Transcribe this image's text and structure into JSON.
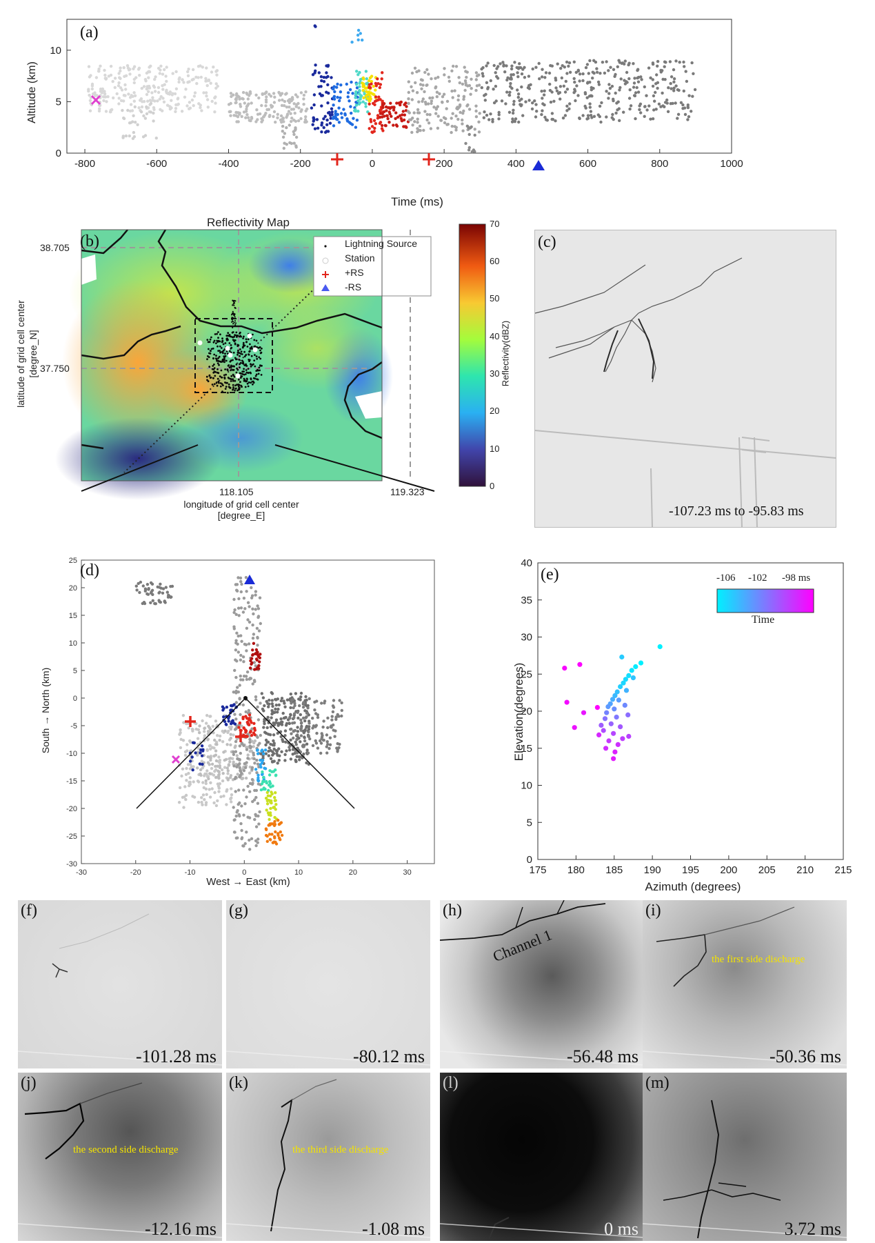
{
  "panel_a": {
    "label": "(a)",
    "ylabel": "Altitude (km)",
    "xlabel": "Time (ms)",
    "xticks": [
      "-800",
      "-600",
      "-400",
      "-200",
      "0",
      "200",
      "400",
      "600",
      "800",
      "1000"
    ],
    "yticks": [
      "0",
      "5",
      "10"
    ]
  },
  "panel_b": {
    "label": "(b)",
    "title": "Reflectivity Map",
    "ylabel_1": "latitude of grid cell center",
    "ylabel_2": "[degree_N]",
    "xlabel_1": "longitude of grid cell center",
    "xlabel_2": "[degree_E]",
    "yticks": [
      "38.705",
      "37.750"
    ],
    "xticks": [
      "118.105",
      "119.323"
    ],
    "legend": [
      "Lightning Source",
      "Station",
      "+RS",
      "-RS"
    ],
    "colorbar_label": "Reflectivity(dBZ)",
    "colorbar_ticks": [
      "70",
      "60",
      "50",
      "40",
      "30",
      "20",
      "10",
      "0"
    ]
  },
  "panel_c": {
    "label": "(c)",
    "caption": "-107.23 ms to  -95.83 ms"
  },
  "panel_d": {
    "label": "(d)",
    "ylabel": "South → North (km)",
    "xlabel": "West → East (km)",
    "xticks": [
      "-30",
      "-20",
      "-10",
      "0",
      "10",
      "20",
      "30"
    ],
    "yticks": [
      "25",
      "20",
      "15",
      "10",
      "5",
      "0",
      "-5",
      "-10",
      "-15",
      "-20",
      "-25",
      "-30"
    ]
  },
  "panel_e": {
    "label": "(e)",
    "ylabel": "Elevation(degrees)",
    "xlabel": "Azimuth (degrees)",
    "xticks": [
      "175",
      "180",
      "185",
      "190",
      "195",
      "200",
      "205",
      "210",
      "215"
    ],
    "yticks": [
      "0",
      "5",
      "10",
      "15",
      "20",
      "25",
      "30",
      "35",
      "40"
    ],
    "colorbar_ticks": [
      "-106",
      "-102",
      "-98 ms"
    ],
    "colorbar_label": "Time"
  },
  "chart_data": {
    "type": "scatter",
    "xlabel": "Azimuth (degrees)",
    "ylabel": "Elevation(degrees)",
    "xlim": [
      175,
      215
    ],
    "ylim": [
      0,
      40
    ],
    "colorbar": {
      "label": "Time",
      "range_ms": [
        -107,
        -96
      ]
    },
    "points": [
      {
        "x": 191.0,
        "y": 28.7,
        "t": -107
      },
      {
        "x": 188.5,
        "y": 26.5,
        "t": -107
      },
      {
        "x": 187.8,
        "y": 26.0,
        "t": -106.8
      },
      {
        "x": 187.3,
        "y": 25.5,
        "t": -106.5
      },
      {
        "x": 186.9,
        "y": 24.8,
        "t": -106.2
      },
      {
        "x": 186.5,
        "y": 24.3,
        "t": -106
      },
      {
        "x": 186.2,
        "y": 23.8,
        "t": -105.8
      },
      {
        "x": 185.8,
        "y": 23.3,
        "t": -105.5
      },
      {
        "x": 186.0,
        "y": 27.3,
        "t": -105.3
      },
      {
        "x": 187.5,
        "y": 24.5,
        "t": -105
      },
      {
        "x": 185.4,
        "y": 22.6,
        "t": -104.8
      },
      {
        "x": 185.1,
        "y": 22.1,
        "t": -104.5
      },
      {
        "x": 186.6,
        "y": 22.8,
        "t": -104.2
      },
      {
        "x": 184.8,
        "y": 21.6,
        "t": -104
      },
      {
        "x": 184.5,
        "y": 21.0,
        "t": -103.5
      },
      {
        "x": 185.6,
        "y": 21.5,
        "t": -103.2
      },
      {
        "x": 184.2,
        "y": 20.6,
        "t": -103
      },
      {
        "x": 185.0,
        "y": 20.3,
        "t": -102.5
      },
      {
        "x": 186.4,
        "y": 20.8,
        "t": -102.3
      },
      {
        "x": 184.0,
        "y": 19.8,
        "t": -102
      },
      {
        "x": 185.3,
        "y": 19.2,
        "t": -101.5
      },
      {
        "x": 183.8,
        "y": 19.0,
        "t": -101.2
      },
      {
        "x": 186.8,
        "y": 19.5,
        "t": -101
      },
      {
        "x": 184.6,
        "y": 18.3,
        "t": -100.5
      },
      {
        "x": 183.3,
        "y": 18.1,
        "t": -100.2
      },
      {
        "x": 185.8,
        "y": 17.9,
        "t": -100
      },
      {
        "x": 183.6,
        "y": 17.4,
        "t": -99.5
      },
      {
        "x": 184.9,
        "y": 17.0,
        "t": -99.2
      },
      {
        "x": 186.9,
        "y": 16.6,
        "t": -99
      },
      {
        "x": 184.3,
        "y": 16.0,
        "t": -98.5
      },
      {
        "x": 185.5,
        "y": 15.5,
        "t": -98.2
      },
      {
        "x": 183.9,
        "y": 15.0,
        "t": -98
      },
      {
        "x": 185.1,
        "y": 14.5,
        "t": -97.5
      },
      {
        "x": 184.9,
        "y": 13.6,
        "t": -97.2
      },
      {
        "x": 181.0,
        "y": 19.8,
        "t": -97
      },
      {
        "x": 179.8,
        "y": 17.8,
        "t": -96.8
      },
      {
        "x": 178.8,
        "y": 21.2,
        "t": -96.5
      },
      {
        "x": 178.5,
        "y": 25.8,
        "t": -96.3
      },
      {
        "x": 180.5,
        "y": 26.3,
        "t": -96.1
      },
      {
        "x": 182.8,
        "y": 20.5,
        "t": -96
      },
      {
        "x": 183.0,
        "y": 16.8,
        "t": -97.8
      },
      {
        "x": 186.1,
        "y": 16.3,
        "t": -98.8
      }
    ]
  },
  "photos": [
    {
      "label": "(f)",
      "caption": "-101.28 ms"
    },
    {
      "label": "(g)",
      "caption": "-80.12 ms"
    },
    {
      "label": "(h)",
      "caption": "-56.48  ms",
      "note": "Channel 1"
    },
    {
      "label": "(i)",
      "caption": "-50.36 ms",
      "note": "the first side discharge"
    },
    {
      "label": "(j)",
      "caption": "-12.16 ms",
      "note": "the second side discharge"
    },
    {
      "label": "(k)",
      "caption": "-1.08 ms",
      "note": "the third side discharge"
    },
    {
      "label": "(l)",
      "caption": "0 ms"
    },
    {
      "label": "(m)",
      "caption": "3.72 ms"
    }
  ],
  "colors": {
    "accent_pos": "#e2261c",
    "accent_neg": "#1a2bd6",
    "start_marker": "#e040d0",
    "text_yellow": "#f5e400"
  }
}
